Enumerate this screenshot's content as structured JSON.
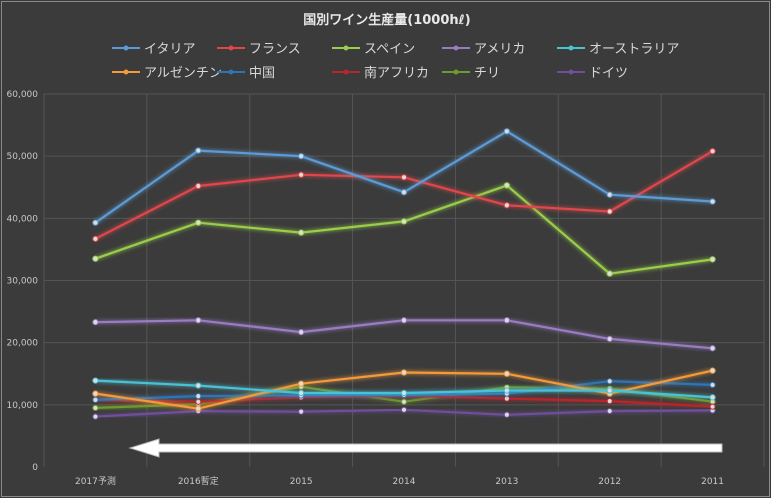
{
  "chart_data": {
    "type": "line",
    "title": "国別ワイン生産量(1000hℓ)",
    "xlabel": "",
    "ylabel": "",
    "categories": [
      "2017予測",
      "2016暫定",
      "2015",
      "2014",
      "2013",
      "2012",
      "2011"
    ],
    "ylim": [
      0,
      60000
    ],
    "yticks": [
      "0",
      "10,000",
      "20,000",
      "30,000",
      "40,000",
      "50,000",
      "60,000"
    ],
    "grid": true,
    "legend_position": "top",
    "series": [
      {
        "name": "イタリア",
        "color": "#5b9bd5",
        "values": [
          39300,
          50900,
          50000,
          44200,
          54000,
          43800,
          42700
        ]
      },
      {
        "name": "フランス",
        "color": "#e0474c",
        "values": [
          36700,
          45200,
          47000,
          46600,
          42100,
          41100,
          50800
        ]
      },
      {
        "name": "スペイン",
        "color": "#9acd4a",
        "values": [
          33500,
          39300,
          37700,
          39500,
          45300,
          31100,
          33400
        ]
      },
      {
        "name": "アメリカ",
        "color": "#9a7cc4",
        "values": [
          23300,
          23600,
          21700,
          23600,
          23600,
          20600,
          19100
        ]
      },
      {
        "name": "オーストラリア",
        "color": "#4bc1d6",
        "values": [
          13900,
          13100,
          11900,
          11900,
          12300,
          12300,
          11200
        ]
      },
      {
        "name": "アルゼンチン",
        "color": "#f49a3a",
        "values": [
          11800,
          9400,
          13400,
          15200,
          15000,
          11800,
          15500
        ]
      },
      {
        "name": "中国",
        "color": "#2e75b6",
        "values": [
          10800,
          11400,
          11500,
          11600,
          11800,
          13800,
          13200
        ]
      },
      {
        "name": "南アフリカ",
        "color": "#b7262b",
        "values": [
          10800,
          10500,
          11200,
          11500,
          11000,
          10600,
          9700
        ]
      },
      {
        "name": "チリ",
        "color": "#6e9b2e",
        "values": [
          9500,
          10100,
          12900,
          10500,
          12800,
          12600,
          10500
        ]
      },
      {
        "name": "ドイツ",
        "color": "#6f4f9a",
        "values": [
          8100,
          9000,
          8900,
          9200,
          8400,
          9000,
          9100
        ]
      }
    ],
    "annotation": {
      "type": "arrow",
      "direction": "left",
      "color": "#ffffff"
    }
  }
}
